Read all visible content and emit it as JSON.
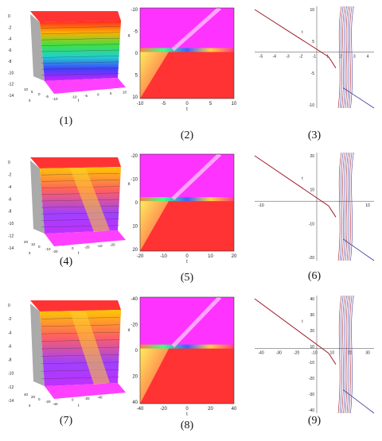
{
  "figure": {
    "captions": [
      "(1)",
      "(2)",
      "(3)",
      "(4)",
      "(5)",
      "(6)",
      "(7)",
      "(8)",
      "(9)"
    ],
    "panels": [
      {
        "id": 1,
        "type": "surface3d",
        "axis_letters": [
          "x",
          "t"
        ],
        "z_ticks": [
          "0",
          "-2",
          "-4",
          "-6",
          "-8",
          "-10",
          "-12",
          "-14"
        ],
        "x_ticks": [
          "10",
          "5",
          "0",
          "-5",
          "-10"
        ],
        "t_ticks": [
          "-10",
          "-5",
          "0",
          "5",
          "10"
        ]
      },
      {
        "id": 2,
        "type": "density",
        "axis_letters": [
          "x",
          "t"
        ],
        "y_ticks": [
          "-10",
          "-5",
          "0",
          "5",
          "10"
        ],
        "x_ticks": [
          "-10",
          "-5",
          "0",
          "5",
          "10"
        ]
      },
      {
        "id": 3,
        "type": "lines",
        "axis_letters": [
          "t",
          "x"
        ],
        "x_ticks": [
          "-5",
          "-4",
          "-3",
          "-2",
          "-1",
          "1",
          "2",
          "3",
          "4"
        ],
        "y_ticks": [
          "10",
          "5",
          "-5",
          "-10"
        ]
      },
      {
        "id": 4,
        "type": "surface3d",
        "axis_letters": [
          "x",
          "t"
        ],
        "z_ticks": [
          "0",
          "-2",
          "-4",
          "-6",
          "-8",
          "-10",
          "-12",
          "-14"
        ],
        "x_ticks": [
          "20",
          "10",
          "0",
          "-10",
          "-20"
        ],
        "t_ticks": [
          "0",
          "-20",
          "-10",
          "-20"
        ]
      },
      {
        "id": 5,
        "type": "density",
        "axis_letters": [
          "x",
          "t"
        ],
        "y_ticks": [
          "-20",
          "-10",
          "0",
          "10",
          "20"
        ],
        "x_ticks": [
          "-20",
          "-10",
          "0",
          "10",
          "20"
        ]
      },
      {
        "id": 6,
        "type": "lines",
        "axis_letters": [
          "t",
          "x"
        ],
        "x_ticks": [
          "-10",
          "10"
        ],
        "y_ticks": [
          "20",
          "10",
          "-10",
          "-20"
        ]
      },
      {
        "id": 7,
        "type": "surface3d",
        "axis_letters": [
          "x",
          "t"
        ],
        "z_ticks": [
          "0",
          "-2",
          "-4",
          "-6",
          "-8",
          "-10",
          "-12",
          "-14"
        ],
        "x_ticks": [
          "40",
          "20",
          "0",
          "-20",
          "-40"
        ],
        "t_ticks": [
          "0",
          "-20",
          "-40"
        ]
      },
      {
        "id": 8,
        "type": "density",
        "axis_letters": [
          "x",
          "t"
        ],
        "y_ticks": [
          "-40",
          "-20",
          "0",
          "20",
          "40"
        ],
        "x_ticks": [
          "-40",
          "-20",
          "0",
          "20",
          "40"
        ]
      },
      {
        "id": 9,
        "type": "lines",
        "axis_letters": [
          "t",
          "x"
        ],
        "x_ticks": [
          "-40",
          "-30",
          "-20",
          "-10",
          "10",
          "20",
          "30"
        ],
        "y_ticks": [
          "40",
          "30",
          "20",
          "10",
          "-10",
          "-20",
          "-30",
          "-40"
        ]
      }
    ],
    "colors": {
      "magenta": "#ff33ff",
      "red": "#ff3333",
      "yellow": "#ffe633",
      "line_red": "#a01a2a",
      "line_blue": "#3a3aa0"
    }
  }
}
